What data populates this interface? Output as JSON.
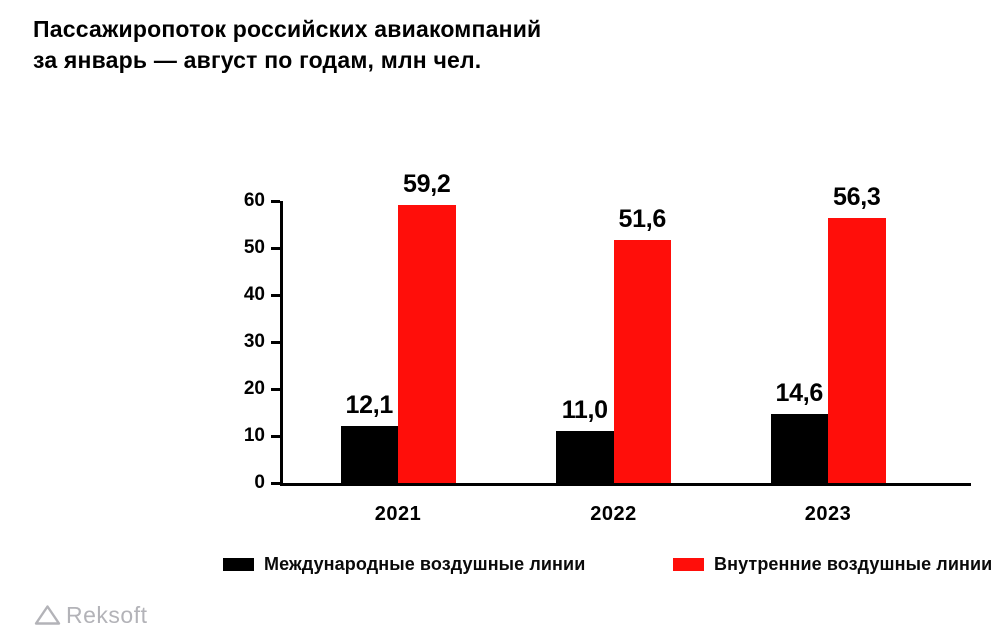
{
  "title": {
    "line1": "Пассажиропоток российских авиакомпаний",
    "line2": "за январь — август по годам, млн чел."
  },
  "chart_data": {
    "type": "bar",
    "title": "Пассажиропоток российских авиакомпаний за январь — август по годам, млн чел.",
    "categories": [
      "2021",
      "2022",
      "2023"
    ],
    "series": [
      {
        "name": "Международные воздушные линии",
        "color": "#000000",
        "values": [
          12.1,
          11.0,
          14.6
        ],
        "value_labels": [
          "12,1",
          "11,0",
          "14,6"
        ]
      },
      {
        "name": "Внутренние воздушные линии",
        "color": "#ff0e0a",
        "values": [
          59.2,
          51.6,
          56.3
        ],
        "value_labels": [
          "59,2",
          "51,6",
          "56,3"
        ]
      }
    ],
    "xlabel": "",
    "ylabel": "",
    "ylim": [
      0,
      60
    ],
    "yticks": [
      0,
      10,
      20,
      30,
      40,
      50,
      60
    ],
    "grid": false,
    "legend_position": "bottom"
  },
  "legend": {
    "items": [
      {
        "label": "Международные воздушные линии",
        "color": "#000000"
      },
      {
        "label": "Внутренние воздушные линии",
        "color": "#ff0e0a"
      }
    ]
  },
  "footer": {
    "logo_text": "Reksoft"
  },
  "colors": {
    "bar_black": "#000000",
    "bar_red": "#ff0e0a",
    "axis": "#000000",
    "logo_gray": "#b3b3b8"
  }
}
